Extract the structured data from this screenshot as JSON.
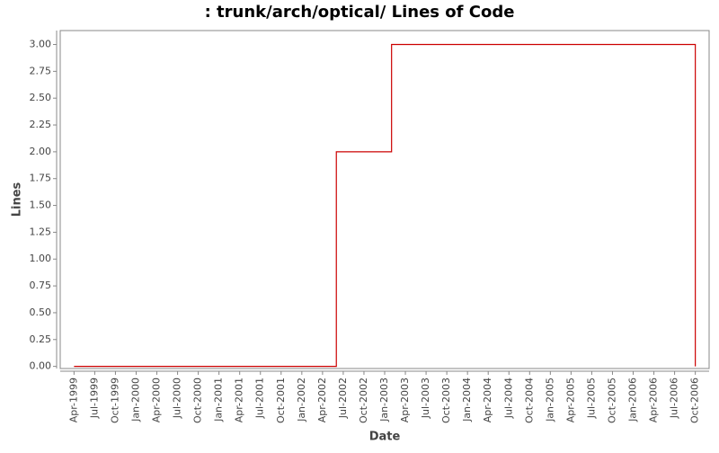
{
  "chart_data": {
    "type": "line",
    "step": "post",
    "title": ": trunk/arch/optical/ Lines of Code",
    "x_label": "Date",
    "y_label": "Lines",
    "x": [
      "1999-04",
      "2002-06",
      "2003-02",
      "2006-10"
    ],
    "series": [
      {
        "name": "Lines",
        "color": "#cc0000",
        "values": [
          0,
          2,
          3,
          0
        ]
      }
    ],
    "xlim": [
      "1999-02",
      "2006-12"
    ],
    "xticks": [
      {
        "value": "1999-04",
        "label": "Apr-1999"
      },
      {
        "value": "1999-07",
        "label": "Jul-1999"
      },
      {
        "value": "1999-10",
        "label": "Oct-1999"
      },
      {
        "value": "2000-01",
        "label": "Jan-2000"
      },
      {
        "value": "2000-04",
        "label": "Apr-2000"
      },
      {
        "value": "2000-07",
        "label": "Jul-2000"
      },
      {
        "value": "2000-10",
        "label": "Oct-2000"
      },
      {
        "value": "2001-01",
        "label": "Jan-2001"
      },
      {
        "value": "2001-04",
        "label": "Apr-2001"
      },
      {
        "value": "2001-07",
        "label": "Jul-2001"
      },
      {
        "value": "2001-10",
        "label": "Oct-2001"
      },
      {
        "value": "2002-01",
        "label": "Jan-2002"
      },
      {
        "value": "2002-04",
        "label": "Apr-2002"
      },
      {
        "value": "2002-07",
        "label": "Jul-2002"
      },
      {
        "value": "2002-10",
        "label": "Oct-2002"
      },
      {
        "value": "2003-01",
        "label": "Jan-2003"
      },
      {
        "value": "2003-04",
        "label": "Apr-2003"
      },
      {
        "value": "2003-07",
        "label": "Jul-2003"
      },
      {
        "value": "2003-10",
        "label": "Oct-2003"
      },
      {
        "value": "2004-01",
        "label": "Jan-2004"
      },
      {
        "value": "2004-04",
        "label": "Apr-2004"
      },
      {
        "value": "2004-07",
        "label": "Jul-2004"
      },
      {
        "value": "2004-10",
        "label": "Oct-2004"
      },
      {
        "value": "2005-01",
        "label": "Jan-2005"
      },
      {
        "value": "2005-04",
        "label": "Apr-2005"
      },
      {
        "value": "2005-07",
        "label": "Jul-2005"
      },
      {
        "value": "2005-10",
        "label": "Oct-2005"
      },
      {
        "value": "2006-01",
        "label": "Jan-2006"
      },
      {
        "value": "2006-04",
        "label": "Apr-2006"
      },
      {
        "value": "2006-07",
        "label": "Jul-2006"
      },
      {
        "value": "2006-10",
        "label": "Oct-2006"
      }
    ],
    "ylim": [
      -0.02,
      3.13
    ],
    "yticks": [
      {
        "value": 0,
        "label": "0.00"
      },
      {
        "value": 0.25,
        "label": "0.25"
      },
      {
        "value": 0.5,
        "label": "0.50"
      },
      {
        "value": 0.75,
        "label": "0.75"
      },
      {
        "value": 1,
        "label": "1.00"
      },
      {
        "value": 1.25,
        "label": "1.25"
      },
      {
        "value": 1.5,
        "label": "1.50"
      },
      {
        "value": 1.75,
        "label": "1.75"
      },
      {
        "value": 2,
        "label": "2.00"
      },
      {
        "value": 2.25,
        "label": "2.25"
      },
      {
        "value": 2.5,
        "label": "2.50"
      },
      {
        "value": 2.75,
        "label": "2.75"
      },
      {
        "value": 3,
        "label": "3.00"
      }
    ],
    "grid": false
  }
}
